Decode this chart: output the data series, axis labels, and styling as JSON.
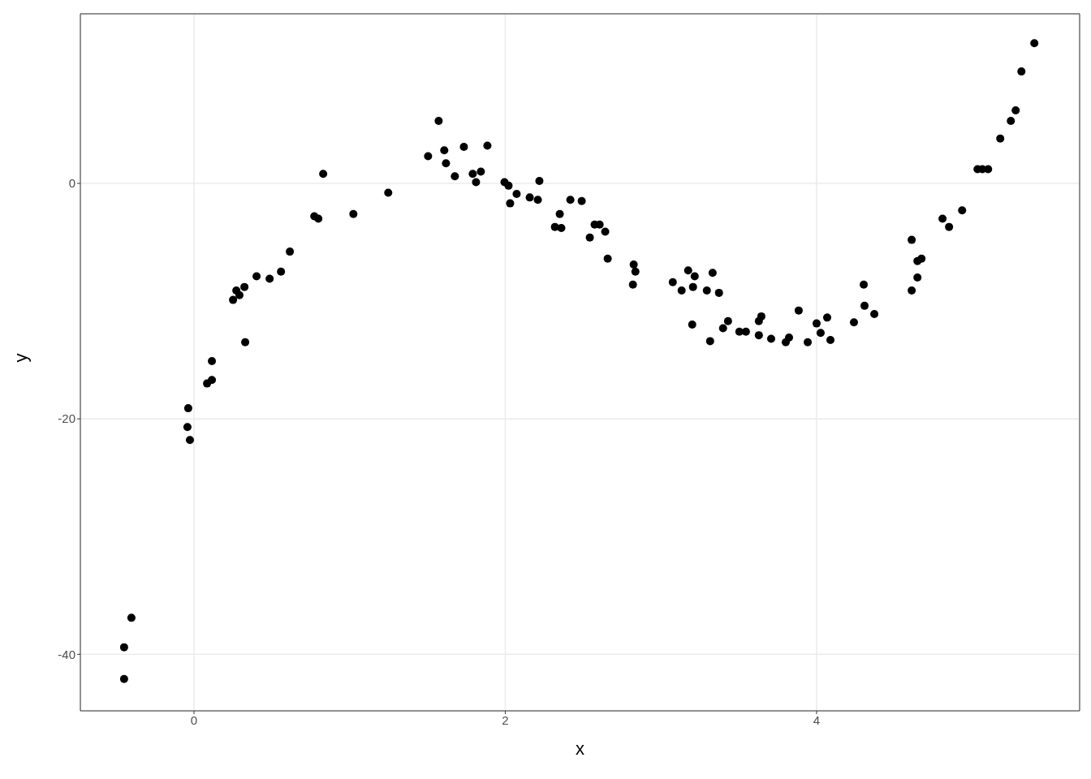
{
  "chart_data": {
    "type": "scatter",
    "xlabel": "x",
    "ylabel": "y",
    "xlim": [
      -0.73,
      5.69
    ],
    "ylim": [
      -44.8,
      14.4
    ],
    "xticks": [
      0,
      2,
      4
    ],
    "yticks": [
      -40,
      -20,
      0
    ],
    "grid": true,
    "marker": "circle",
    "series": [
      {
        "color": "#000000",
        "x": [
          -0.449,
          -0.449,
          -0.402,
          -0.037,
          -0.042,
          -0.026,
          0.115,
          0.115,
          0.084,
          0.251,
          0.272,
          0.292,
          0.324,
          0.329,
          0.402,
          0.486,
          0.559,
          0.616,
          0.773,
          0.799,
          0.83,
          1.024,
          1.248,
          1.504,
          1.572,
          1.608,
          1.619,
          1.676,
          1.734,
          1.791,
          1.812,
          1.843,
          1.885,
          1.995,
          2.021,
          2.031,
          2.073,
          2.157,
          2.209,
          2.219,
          2.319,
          2.35,
          2.36,
          2.418,
          2.491,
          2.543,
          2.574,
          2.606,
          2.642,
          2.658,
          2.825,
          2.836,
          2.82,
          3.076,
          3.133,
          3.175,
          3.217,
          3.206,
          3.201,
          3.295,
          3.316,
          3.332,
          3.373,
          3.399,
          3.431,
          3.504,
          3.546,
          3.629,
          3.645,
          3.629,
          3.708,
          3.802,
          3.823,
          3.885,
          3.943,
          4.0,
          4.026,
          4.068,
          4.089,
          4.24,
          4.303,
          4.308,
          4.371,
          4.611,
          4.611,
          4.648,
          4.648,
          4.674,
          4.809,
          4.851,
          4.935,
          5.034,
          5.065,
          5.102,
          5.18,
          5.248,
          5.279,
          5.316,
          5.399
        ],
        "values": [
          -42.1,
          -39.4,
          -36.9,
          -19.1,
          -20.7,
          -21.8,
          -15.1,
          -16.7,
          -17.0,
          -9.9,
          -9.1,
          -9.5,
          -8.8,
          -13.5,
          -7.9,
          -8.1,
          -7.5,
          -5.8,
          -2.8,
          -3.0,
          0.8,
          -2.6,
          -0.8,
          2.3,
          5.3,
          2.8,
          1.7,
          0.6,
          3.1,
          0.8,
          0.1,
          1.0,
          3.2,
          0.1,
          -0.2,
          -1.7,
          -0.9,
          -1.2,
          -1.4,
          0.2,
          -3.7,
          -2.6,
          -3.8,
          -1.4,
          -1.5,
          -4.6,
          -3.5,
          -3.5,
          -4.1,
          -6.4,
          -6.9,
          -7.5,
          -8.6,
          -8.4,
          -9.1,
          -7.4,
          -7.9,
          -8.8,
          -12.0,
          -9.1,
          -13.4,
          -7.6,
          -9.3,
          -12.3,
          -11.7,
          -12.6,
          -12.6,
          -11.7,
          -11.3,
          -12.9,
          -13.2,
          -13.5,
          -13.1,
          -10.8,
          -13.5,
          -11.9,
          -12.7,
          -11.4,
          -13.3,
          -11.8,
          -8.6,
          -10.4,
          -11.1,
          -4.8,
          -9.1,
          -8.0,
          -6.6,
          -6.4,
          -3.0,
          -3.7,
          -2.3,
          1.2,
          1.2,
          1.2,
          3.8,
          5.3,
          6.2,
          9.5,
          11.9
        ]
      }
    ]
  }
}
